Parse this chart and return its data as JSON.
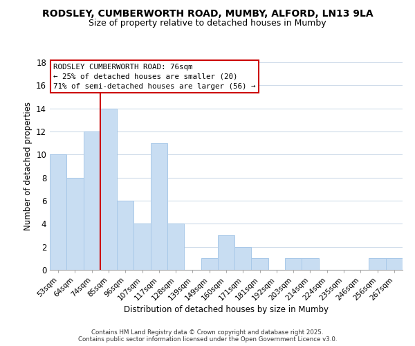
{
  "title": "RODSLEY, CUMBERWORTH ROAD, MUMBY, ALFORD, LN13 9LA",
  "subtitle": "Size of property relative to detached houses in Mumby",
  "xlabel": "Distribution of detached houses by size in Mumby",
  "ylabel": "Number of detached properties",
  "bar_color": "#c8ddf2",
  "bar_edge_color": "#a8c8e8",
  "categories": [
    "53sqm",
    "64sqm",
    "74sqm",
    "85sqm",
    "96sqm",
    "107sqm",
    "117sqm",
    "128sqm",
    "139sqm",
    "149sqm",
    "160sqm",
    "171sqm",
    "181sqm",
    "192sqm",
    "203sqm",
    "214sqm",
    "224sqm",
    "235sqm",
    "246sqm",
    "256sqm",
    "267sqm"
  ],
  "values": [
    10,
    8,
    12,
    14,
    6,
    4,
    11,
    4,
    0,
    1,
    3,
    2,
    1,
    0,
    1,
    1,
    0,
    0,
    0,
    1,
    1
  ],
  "ylim": [
    0,
    18
  ],
  "yticks": [
    0,
    2,
    4,
    6,
    8,
    10,
    12,
    14,
    16,
    18
  ],
  "vline_color": "#cc0000",
  "vline_x_index": 2.5,
  "annotation_title": "RODSLEY CUMBERWORTH ROAD: 76sqm",
  "annotation_line1": "← 25% of detached houses are smaller (20)",
  "annotation_line2": "71% of semi-detached houses are larger (56) →",
  "footer1": "Contains HM Land Registry data © Crown copyright and database right 2025.",
  "footer2": "Contains public sector information licensed under the Open Government Licence v3.0.",
  "background_color": "#ffffff",
  "grid_color": "#d0dcea"
}
